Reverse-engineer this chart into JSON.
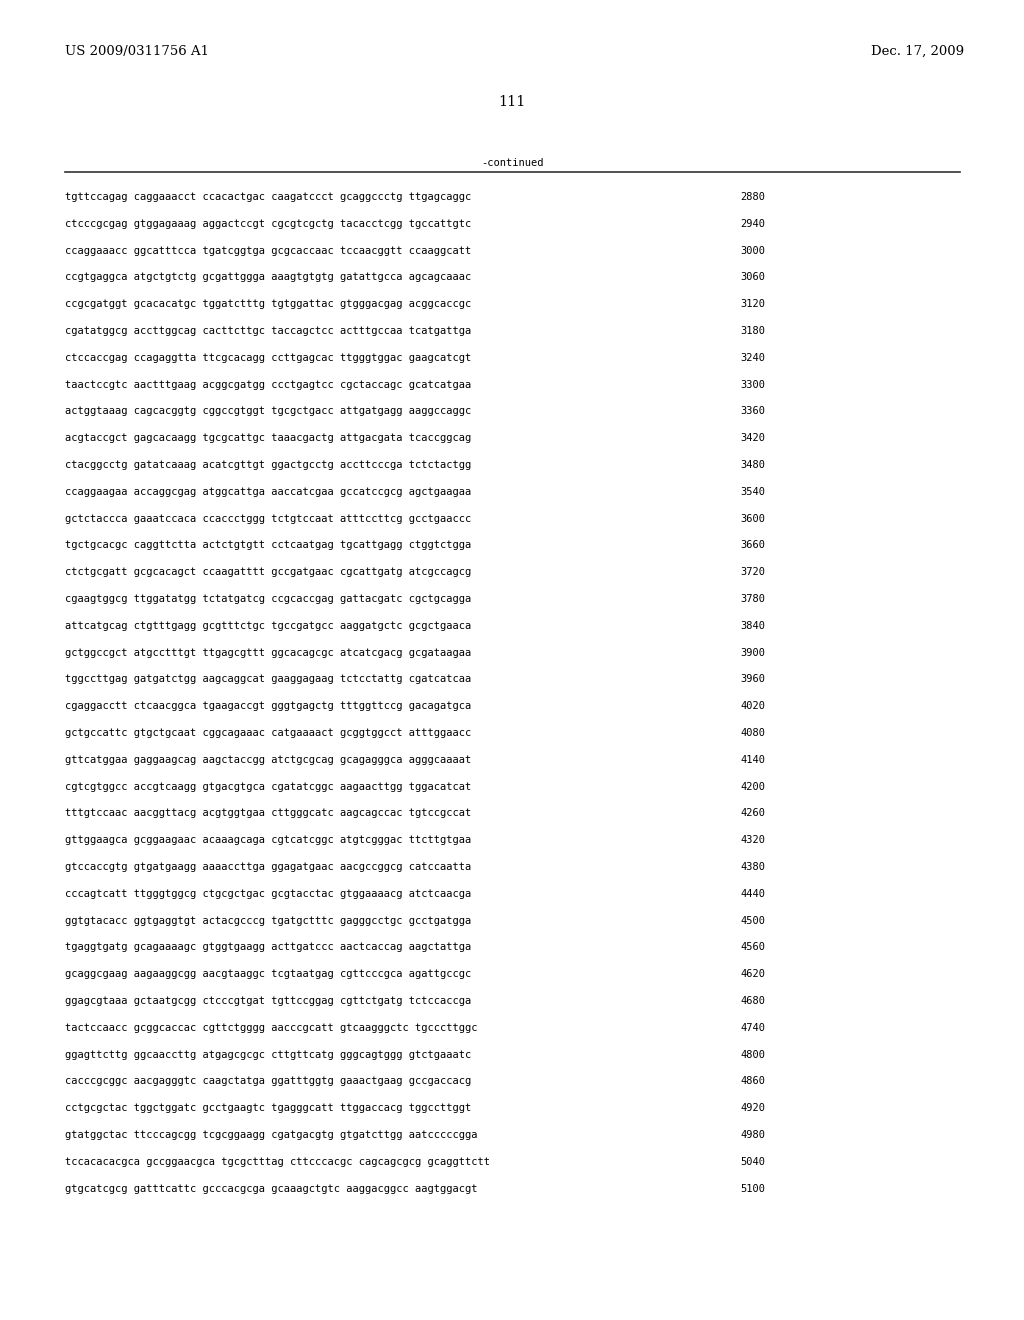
{
  "header_left": "US 2009/0311756 A1",
  "header_right": "Dec. 17, 2009",
  "page_number": "111",
  "continued_label": "-continued",
  "background_color": "#ffffff",
  "text_color": "#000000",
  "font_size_header": 9.5,
  "font_size_body": 7.5,
  "font_size_page": 10.5,
  "sequence_lines": [
    [
      "tgttccagag caggaaacct ccacactgac caagatccct gcaggccctg ttgagcaggc",
      "2880"
    ],
    [
      "ctcccgcgag gtggagaaag aggactccgt cgcgtcgctg tacacctcgg tgccattgtc",
      "2940"
    ],
    [
      "ccaggaaacc ggcatttcca tgatcggtga gcgcaccaac tccaacggtt ccaaggcatt",
      "3000"
    ],
    [
      "ccgtgaggca atgctgtctg gcgattggga aaagtgtgtg gatattgcca agcagcaaac",
      "3060"
    ],
    [
      "ccgcgatggt gcacacatgc tggatctttg tgtggattac gtgggacgag acggcaccgc",
      "3120"
    ],
    [
      "cgatatggcg accttggcag cacttcttgc taccagctcc actttgccaa tcatgattga",
      "3180"
    ],
    [
      "ctccaccgag ccagaggtta ttcgcacagg ccttgagcac ttgggtggac gaagcatcgt",
      "3240"
    ],
    [
      "taactccgtc aactttgaag acggcgatgg ccctgagtcc cgctaccagc gcatcatgaa",
      "3300"
    ],
    [
      "actggtaaag cagcacggtg cggccgtggt tgcgctgacc attgatgagg aaggccaggc",
      "3360"
    ],
    [
      "acgtaccgct gagcacaagg tgcgcattgc taaacgactg attgacgata tcaccggcag",
      "3420"
    ],
    [
      "ctacggcctg gatatcaaag acatcgttgt ggactgcctg accttcccga tctctactgg",
      "3480"
    ],
    [
      "ccaggaagaa accaggcgag atggcattga aaccatcgaa gccatccgcg agctgaagaa",
      "3540"
    ],
    [
      "gctctaccca gaaatccaca ccaccctggg tctgtccaat atttccttcg gcctgaaccc",
      "3600"
    ],
    [
      "tgctgcacgc caggttctta actctgtgtt cctcaatgag tgcattgagg ctggtctgga",
      "3660"
    ],
    [
      "ctctgcgatt gcgcacagct ccaagatttt gccgatgaac cgcattgatg atcgccagcg",
      "3720"
    ],
    [
      "cgaagtggcg ttggatatgg tctatgatcg ccgcaccgag gattacgatc cgctgcagga",
      "3780"
    ],
    [
      "attcatgcag ctgtttgagg gcgtttctgc tgccgatgcc aaggatgctc gcgctgaaca",
      "3840"
    ],
    [
      "gctggccgct atgcctttgt ttgagcgttt ggcacagcgc atcatcgacg gcgataagaa",
      "3900"
    ],
    [
      "tggccttgag gatgatctgg aagcaggcat gaaggagaag tctcctattg cgatcatcaa",
      "3960"
    ],
    [
      "cgaggacctt ctcaacggca tgaagaccgt gggtgagctg tttggttccg gacagatgca",
      "4020"
    ],
    [
      "gctgccattc gtgctgcaat cggcagaaac catgaaaact gcggtggcct atttggaacc",
      "4080"
    ],
    [
      "gttcatggaa gaggaagcag aagctaccgg atctgcgcag gcagagggca agggcaaaat",
      "4140"
    ],
    [
      "cgtcgtggcc accgtcaagg gtgacgtgca cgatatcggc aagaacttgg tggacatcat",
      "4200"
    ],
    [
      "tttgtccaac aacggttacg acgtggtgaa cttgggcatc aagcagccac tgtccgccat",
      "4260"
    ],
    [
      "gttggaagca gcggaagaac acaaagcaga cgtcatcggc atgtcgggac ttcttgtgaa",
      "4320"
    ],
    [
      "gtccaccgtg gtgatgaagg aaaaccttga ggagatgaac aacgccggcg catccaatta",
      "4380"
    ],
    [
      "cccagtcatt ttgggtggcg ctgcgctgac gcgtacctac gtggaaaacg atctcaacga",
      "4440"
    ],
    [
      "ggtgtacacc ggtgaggtgt actacgcccg tgatgctttc gagggcctgc gcctgatgga",
      "4500"
    ],
    [
      "tgaggtgatg gcagaaaagc gtggtgaagg acttgatccc aactcaccag aagctattga",
      "4560"
    ],
    [
      "gcaggcgaag aagaaggcgg aacgtaaggc tcgtaatgag cgttcccgca agattgccgc",
      "4620"
    ],
    [
      "ggagcgtaaa gctaatgcgg ctcccgtgat tgttccggag cgttctgatg tctccaccga",
      "4680"
    ],
    [
      "tactccaacc gcggcaccac cgttctgggg aacccgcatt gtcaagggctc tgcccttggc",
      "4740"
    ],
    [
      "ggagttcttg ggcaaccttg atgagcgcgc cttgttcatg gggcagtggg gtctgaaatc",
      "4800"
    ],
    [
      "cacccgcggc aacgagggtc caagctatga ggatttggtg gaaactgaag gccgaccacg",
      "4860"
    ],
    [
      "cctgcgctac tggctggatc gcctgaagtc tgagggcatt ttggaccacg tggccttggt",
      "4920"
    ],
    [
      "gtatggctac ttcccagcgg tcgcggaagg cgatgacgtg gtgatcttgg aatcccccgga",
      "4980"
    ],
    [
      "tccacacacgca gccggaacgca tgcgctttag cttcccacgc cagcagcgcg gcaggttctt",
      "5040"
    ],
    [
      "gtgcatcgcg gatttcattc gcccacgcga gcaaagctgtc aaggacggcc aagtggacgt",
      "5100"
    ]
  ]
}
